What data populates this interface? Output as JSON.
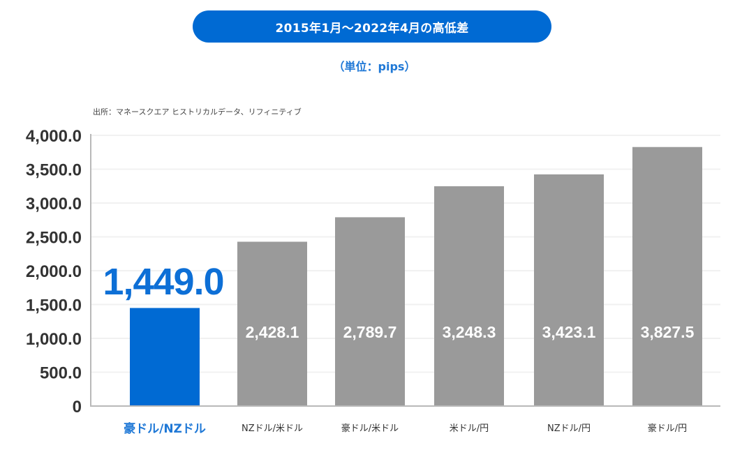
{
  "header": {
    "title": "2015年1月〜2022年4月の高低差",
    "unit": "（単位：pips）",
    "source": "出所：マネースクエア ヒストリカルデータ、リフィニティブ"
  },
  "colors": {
    "accent": "#006ad3",
    "highlight_bar": "#006ad3",
    "bar": "#9a9a9a",
    "grid": "#f1f1f1",
    "axis": "#b9b9b9"
  },
  "chart_data": {
    "type": "bar",
    "title": "2015年1月〜2022年4月の高低差",
    "subtitle": "（単位：pips）",
    "xlabel": "",
    "ylabel": "",
    "ylim": [
      0,
      4000
    ],
    "grid": true,
    "legend": "none",
    "yticks": [
      0,
      500,
      1000,
      1500,
      2000,
      2500,
      3000,
      3500,
      4000
    ],
    "ytick_labels": [
      "0",
      "500.0",
      "1,000.0",
      "1,500.0",
      "2,000.0",
      "2,500.0",
      "3,000.0",
      "3,500.0",
      "4,000.0"
    ],
    "categories": [
      "豪ドル/NZドル",
      "NZドル/米ドル",
      "豪ドル/米ドル",
      "米ドル/円",
      "NZドル/円",
      "豪ドル/円"
    ],
    "values": [
      1449.0,
      2428.1,
      2789.7,
      3248.3,
      3423.1,
      3827.5
    ],
    "value_labels": [
      "1,449.0",
      "2,428.1",
      "2,789.7",
      "3,248.3",
      "3,423.1",
      "3,827.5"
    ],
    "highlighted_index": 0
  }
}
